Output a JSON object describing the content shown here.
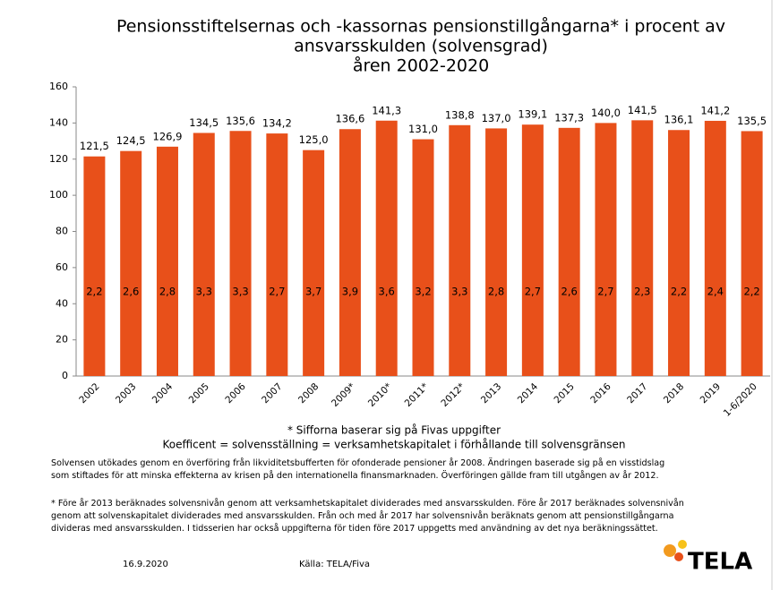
{
  "chart_data": {
    "type": "bar",
    "title": [
      "Pensionsstiftelsernas och -kassornas pensionstillgångarna* i procent av",
      "ansvarsskulden (solvensgrad)",
      "åren 2002-2020"
    ],
    "categories": [
      "2002",
      "2003",
      "2004",
      "2005",
      "2006",
      "2007",
      "2008",
      "2009*",
      "2010*",
      "2011*",
      "2012*",
      "2013",
      "2014",
      "2015",
      "2016",
      "2017",
      "2018",
      "2019",
      "1-6/2020"
    ],
    "values": [
      121.5,
      124.5,
      126.9,
      134.5,
      135.6,
      134.2,
      125.0,
      136.6,
      141.3,
      131.0,
      138.8,
      137.0,
      139.1,
      137.3,
      140.0,
      141.5,
      136.1,
      141.2,
      135.5
    ],
    "value_labels": [
      "121,5",
      "124,5",
      "126,9",
      "134,5",
      "135,6",
      "134,2",
      "125,0",
      "136,6",
      "141,3",
      "131,0",
      "138,8",
      "137,0",
      "139,1",
      "137,3",
      "140,0",
      "141,5",
      "136,1",
      "141,2",
      "135,5"
    ],
    "coefficients": [
      2.2,
      2.6,
      2.8,
      3.3,
      3.3,
      2.7,
      3.7,
      3.9,
      3.6,
      3.2,
      3.3,
      2.8,
      2.7,
      2.6,
      2.7,
      2.3,
      2.2,
      2.4,
      2.2
    ],
    "coefficient_labels": [
      "2,2",
      "2,6",
      "2,8",
      "3,3",
      "3,3",
      "2,7",
      "3,7",
      "3,9",
      "3,6",
      "3,2",
      "3,3",
      "2,8",
      "2,7",
      "2,6",
      "2,7",
      "2,3",
      "2,2",
      "2,4",
      "2,2"
    ],
    "color": "#e8501a",
    "ylim": [
      0,
      160
    ],
    "yticks": [
      0,
      20,
      40,
      60,
      80,
      100,
      120,
      140,
      160
    ],
    "grid": false,
    "notes": [
      "* Sifforna baserar sig på Fivas uppgifter",
      "Koefficent = solvensställning = verksamhetskapitalet i förhållande till solvensgränsen"
    ],
    "paragraphs": [
      [
        "Solvensen utökades genom en överföring från likviditetsbufferten för ofonderade pensioner år 2008. Ändringen baserade sig på en visstidslag",
        "som stiftades för att minska effekterna av krisen på den internationella finansmarknaden. Överföringen gällde fram till utgången av år 2012."
      ],
      [
        "* Före år 2013 beräknades solvensnivån genom att verksamhetskapitalet dividerades med ansvarsskulden. Före år 2017 beräknades solvensnivån",
        "genom att solvenskapitalet dividerades med ansvarsskulden. Från och med år 2017 har solvensnivån beräknats genom att pensionstillgångarna",
        "divideras med ansvarsskulden. I tidsserien har också uppgifterna för tiden före 2017 uppgetts med användning av det nya beräkningssättet."
      ]
    ],
    "date": "16.9.2020",
    "source": "Källa: TELA/Fiva",
    "logo": "TELA"
  }
}
